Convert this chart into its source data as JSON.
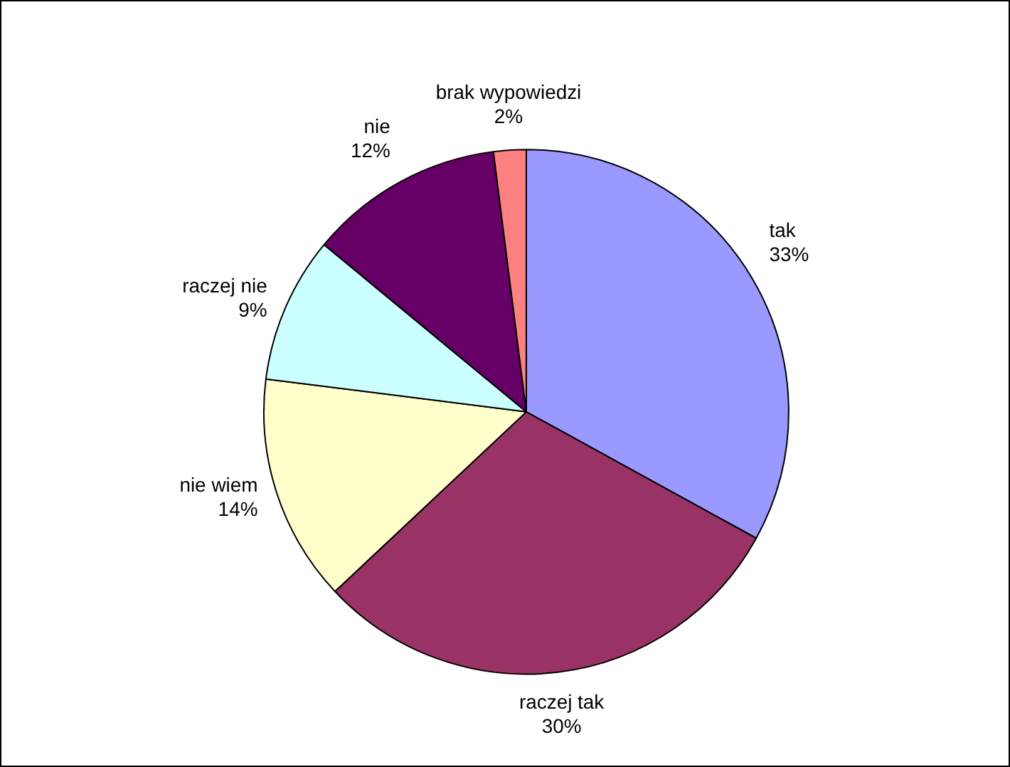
{
  "chart_data": {
    "type": "pie",
    "categories": [
      "tak",
      "raczej tak",
      "nie wiem",
      "raczej nie",
      "nie",
      "brak wypowiedzi"
    ],
    "values": [
      33,
      30,
      14,
      9,
      12,
      2
    ],
    "value_labels": [
      "33%",
      "30%",
      "14%",
      "9%",
      "12%",
      "2%"
    ],
    "colors": [
      "#9999ff",
      "#993366",
      "#ffffcc",
      "#ccffff",
      "#660066",
      "#ff8080"
    ],
    "legend": false
  }
}
